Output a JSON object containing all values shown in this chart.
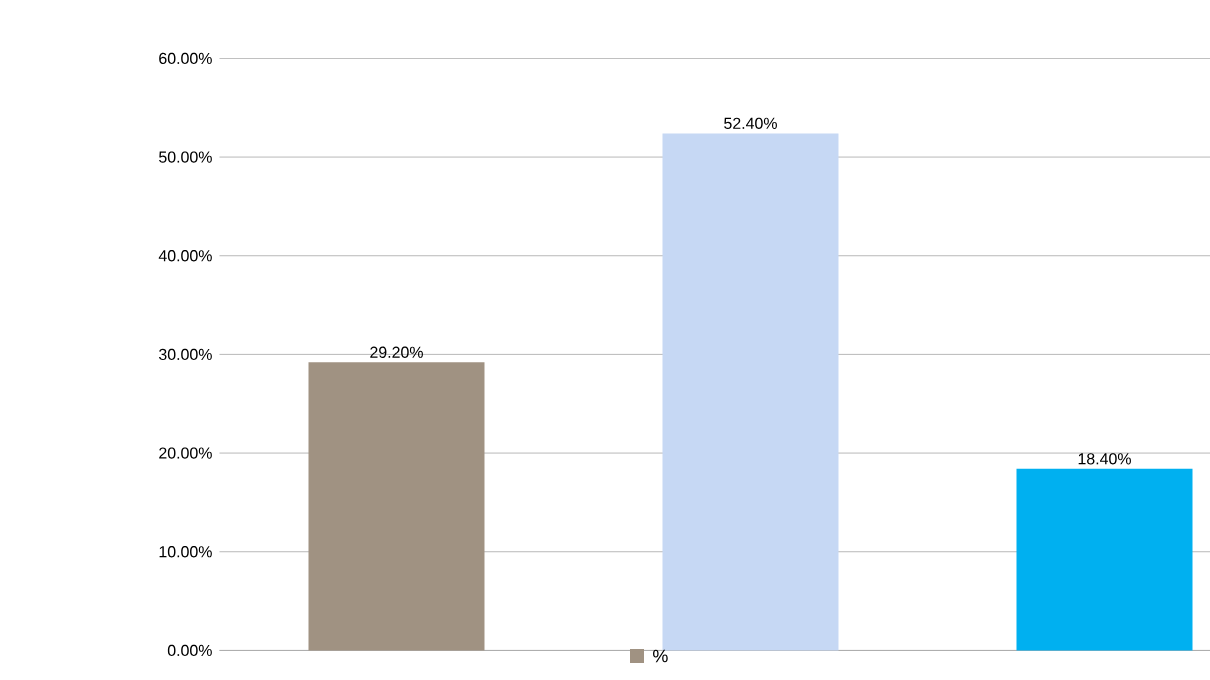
{
  "chart_data": {
    "type": "bar",
    "categories": [
      null,
      null,
      null
    ],
    "series": [
      {
        "name": "%",
        "values": [
          29.2,
          52.4,
          18.4
        ]
      }
    ],
    "colors": [
      "#a09282",
      "#c6d8f4",
      "#00b0f0"
    ],
    "value_labels": [
      "29.20%",
      "52.40%",
      "18.40%"
    ],
    "ylim": [
      0,
      60
    ],
    "yticks": [
      {
        "value": 0,
        "label": "0.00%"
      },
      {
        "value": 10,
        "label": "10.00%"
      },
      {
        "value": 20,
        "label": "20.00%"
      },
      {
        "value": 30,
        "label": "30.00%"
      },
      {
        "value": 40,
        "label": "40.00%"
      },
      {
        "value": 50,
        "label": "50.00%"
      },
      {
        "value": 60,
        "label": "60.00%"
      }
    ],
    "grid": "y",
    "legend": "bottom",
    "tick_labels": "y"
  }
}
